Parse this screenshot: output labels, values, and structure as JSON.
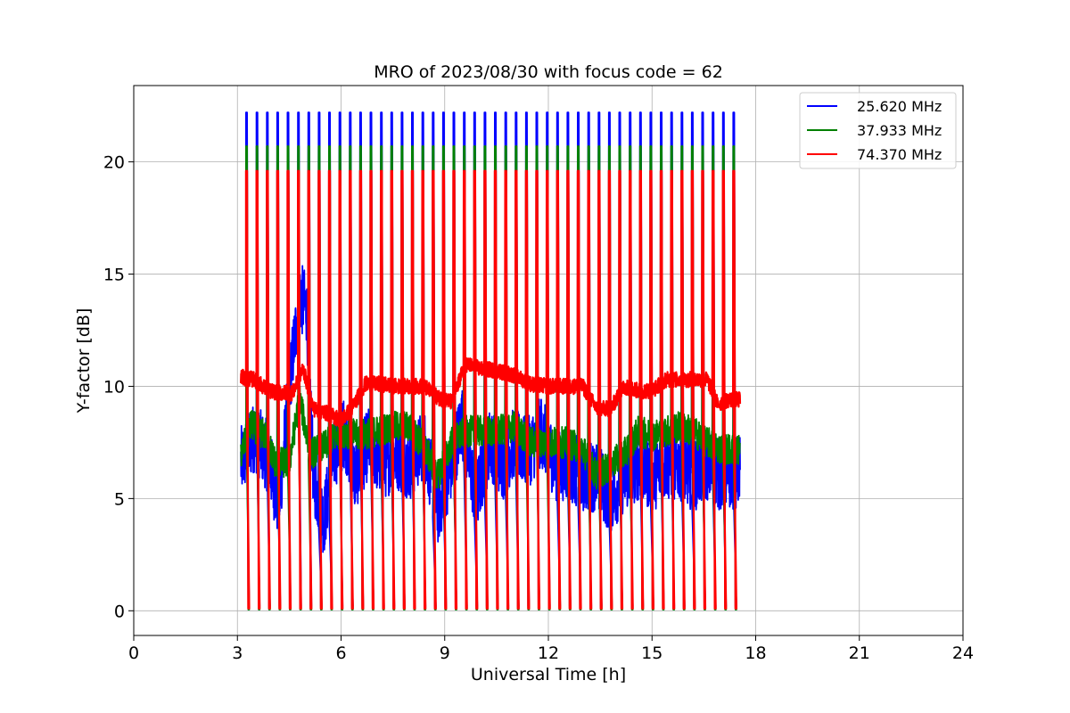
{
  "chart_data": {
    "type": "line",
    "title": "MRO of 2023/08/30 with focus code = 62",
    "xlabel": "Universal Time [h]",
    "ylabel": "Y-factor [dB]",
    "xlim": [
      0,
      24
    ],
    "ylim": [
      -1.1,
      23.4
    ],
    "x_ticks": [
      0,
      3,
      6,
      9,
      12,
      15,
      18,
      21,
      24
    ],
    "y_ticks": [
      0,
      5,
      10,
      15,
      20
    ],
    "grid": true,
    "legend_position": "top-right",
    "x_range_of_data": [
      3.1,
      17.55
    ],
    "calibration_spike_period_h": 0.3,
    "series": [
      {
        "name": "25.620 MHz",
        "color": "#0000ff",
        "spike_max": 22.2,
        "spike_min": 0.2,
        "baseline": [
          [
            3.1,
            6.6
          ],
          [
            3.5,
            7.8
          ],
          [
            3.9,
            6.8
          ],
          [
            4.2,
            4.6
          ],
          [
            4.5,
            10.0
          ],
          [
            4.8,
            14.0
          ],
          [
            5.0,
            13.5
          ],
          [
            5.2,
            6.0
          ],
          [
            5.5,
            4.0
          ],
          [
            5.8,
            7.0
          ],
          [
            6.1,
            8.0
          ],
          [
            6.4,
            6.0
          ],
          [
            6.8,
            7.5
          ],
          [
            7.2,
            6.5
          ],
          [
            7.6,
            7.0
          ],
          [
            8.0,
            6.5
          ],
          [
            8.4,
            7.5
          ],
          [
            8.8,
            4.5
          ],
          [
            9.2,
            6.5
          ],
          [
            9.5,
            8.5
          ],
          [
            9.9,
            5.0
          ],
          [
            10.3,
            7.5
          ],
          [
            10.7,
            6.5
          ],
          [
            11.0,
            7.5
          ],
          [
            11.4,
            7.0
          ],
          [
            11.8,
            8.0
          ],
          [
            12.2,
            6.5
          ],
          [
            12.6,
            6.5
          ],
          [
            13.0,
            6.0
          ],
          [
            13.4,
            6.0
          ],
          [
            13.8,
            5.0
          ],
          [
            14.2,
            6.0
          ],
          [
            14.6,
            6.5
          ],
          [
            15.0,
            6.0
          ],
          [
            15.4,
            6.5
          ],
          [
            15.8,
            6.5
          ],
          [
            16.2,
            6.0
          ],
          [
            16.6,
            6.5
          ],
          [
            17.0,
            6.0
          ],
          [
            17.55,
            6.2
          ]
        ]
      },
      {
        "name": "37.933 MHz",
        "color": "#008000",
        "spike_max": 20.7,
        "spike_min": 0.05,
        "baseline": [
          [
            3.1,
            7.0
          ],
          [
            3.4,
            8.3
          ],
          [
            3.8,
            7.8
          ],
          [
            4.1,
            6.6
          ],
          [
            4.5,
            6.6
          ],
          [
            4.8,
            9.5
          ],
          [
            5.1,
            7.0
          ],
          [
            5.5,
            7.3
          ],
          [
            6.0,
            8.0
          ],
          [
            6.5,
            7.8
          ],
          [
            7.0,
            8.0
          ],
          [
            7.5,
            8.2
          ],
          [
            8.0,
            8.2
          ],
          [
            8.5,
            7.0
          ],
          [
            8.8,
            6.0
          ],
          [
            9.2,
            7.5
          ],
          [
            9.6,
            8.0
          ],
          [
            10.0,
            8.0
          ],
          [
            10.5,
            8.0
          ],
          [
            11.0,
            8.2
          ],
          [
            11.5,
            7.5
          ],
          [
            12.0,
            7.5
          ],
          [
            12.5,
            7.5
          ],
          [
            13.0,
            7.2
          ],
          [
            13.4,
            6.0
          ],
          [
            13.8,
            6.5
          ],
          [
            14.2,
            7.0
          ],
          [
            14.6,
            8.0
          ],
          [
            15.0,
            7.8
          ],
          [
            15.4,
            8.0
          ],
          [
            15.8,
            8.2
          ],
          [
            16.2,
            8.0
          ],
          [
            16.6,
            7.5
          ],
          [
            17.0,
            7.2
          ],
          [
            17.55,
            7.2
          ]
        ]
      },
      {
        "name": "74.370 MHz",
        "color": "#ff0000",
        "spike_max": 19.6,
        "spike_min": 0.1,
        "baseline": [
          [
            3.1,
            10.4
          ],
          [
            3.5,
            10.3
          ],
          [
            3.9,
            9.8
          ],
          [
            4.3,
            9.7
          ],
          [
            4.6,
            9.7
          ],
          [
            4.9,
            10.8
          ],
          [
            5.2,
            9.0
          ],
          [
            5.6,
            8.8
          ],
          [
            6.0,
            8.5
          ],
          [
            6.3,
            9.0
          ],
          [
            6.7,
            10.1
          ],
          [
            7.2,
            10.1
          ],
          [
            7.6,
            10.0
          ],
          [
            8.0,
            10.0
          ],
          [
            8.4,
            10.0
          ],
          [
            8.8,
            9.5
          ],
          [
            9.2,
            9.3
          ],
          [
            9.6,
            11.0
          ],
          [
            10.0,
            10.8
          ],
          [
            10.5,
            10.7
          ],
          [
            11.0,
            10.5
          ],
          [
            11.5,
            10.1
          ],
          [
            12.0,
            10.0
          ],
          [
            12.5,
            10.0
          ],
          [
            13.0,
            10.0
          ],
          [
            13.4,
            9.0
          ],
          [
            13.8,
            9.0
          ],
          [
            14.2,
            10.0
          ],
          [
            14.6,
            9.8
          ],
          [
            15.0,
            9.8
          ],
          [
            15.4,
            10.3
          ],
          [
            15.8,
            10.3
          ],
          [
            16.2,
            10.3
          ],
          [
            16.6,
            10.3
          ],
          [
            16.9,
            9.2
          ],
          [
            17.2,
            9.4
          ],
          [
            17.55,
            9.4
          ]
        ]
      }
    ]
  }
}
